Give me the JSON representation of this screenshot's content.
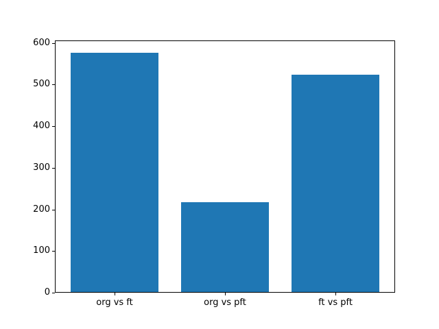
{
  "figure": {
    "background": "#ffffff"
  },
  "chart_data": {
    "type": "bar",
    "categories": [
      "org vs ft",
      "org vs pft",
      "ft vs pft"
    ],
    "values": [
      577,
      218,
      523
    ],
    "title": "",
    "xlabel": "",
    "ylabel": "",
    "ylim": [
      0,
      606
    ],
    "yticks": [
      0,
      100,
      200,
      300,
      400,
      500,
      600
    ],
    "xlim": [
      -0.54,
      2.54
    ],
    "bar_width": 0.8,
    "bar_color": "#1f77b4",
    "axis_color": "#000000",
    "grid": false,
    "legend": false
  }
}
